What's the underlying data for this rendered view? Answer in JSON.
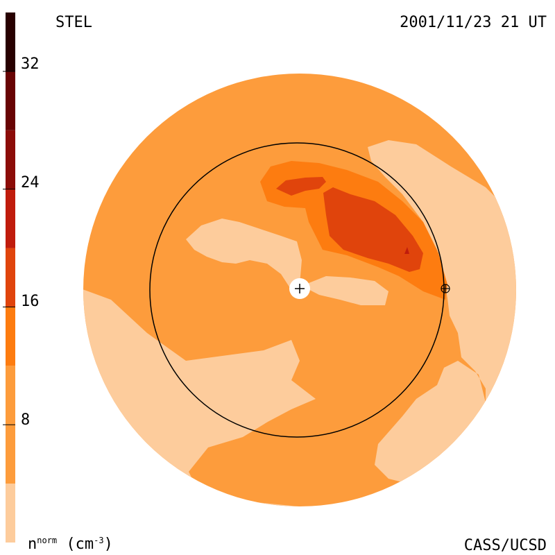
{
  "header": {
    "source": "STEL",
    "datetime": "2001/11/23 21 UT"
  },
  "footer": {
    "credit": "CASS/UCSD",
    "unit_base": "n",
    "unit_sup": "norm",
    "unit_open": " (cm",
    "unit_exp": "-3",
    "unit_close": ")"
  },
  "colorbar": {
    "ticks": [
      {
        "value": 32,
        "label": "32"
      },
      {
        "value": 24,
        "label": "24"
      },
      {
        "value": 16,
        "label": "16"
      },
      {
        "value": 8,
        "label": "8"
      }
    ],
    "range": [
      0,
      36
    ],
    "levels": [
      {
        "from": 0,
        "to": 4,
        "color": "#fdcc9c"
      },
      {
        "from": 4,
        "to": 12,
        "color": "#fd9c3c"
      },
      {
        "from": 12,
        "to": 16,
        "color": "#fd7c10"
      },
      {
        "from": 16,
        "to": 20,
        "color": "#e0440c"
      },
      {
        "from": 20,
        "to": 24,
        "color": "#c01c0c"
      },
      {
        "from": 24,
        "to": 28,
        "color": "#8c0c08"
      },
      {
        "from": 28,
        "to": 32,
        "color": "#680404"
      },
      {
        "from": 32,
        "to": 36,
        "color": "#280000"
      }
    ]
  },
  "colors": {
    "background": "#ffffff",
    "lowest": "#fdcc9c",
    "low": "#fd9c3c",
    "mid": "#fd7c10",
    "high": "#e0440c",
    "peak": "#c01c0c",
    "orbit": "#000000",
    "sun": "#ffffff"
  },
  "markers": {
    "sun": "plus-icon",
    "earth": "circled-plus-icon"
  }
}
